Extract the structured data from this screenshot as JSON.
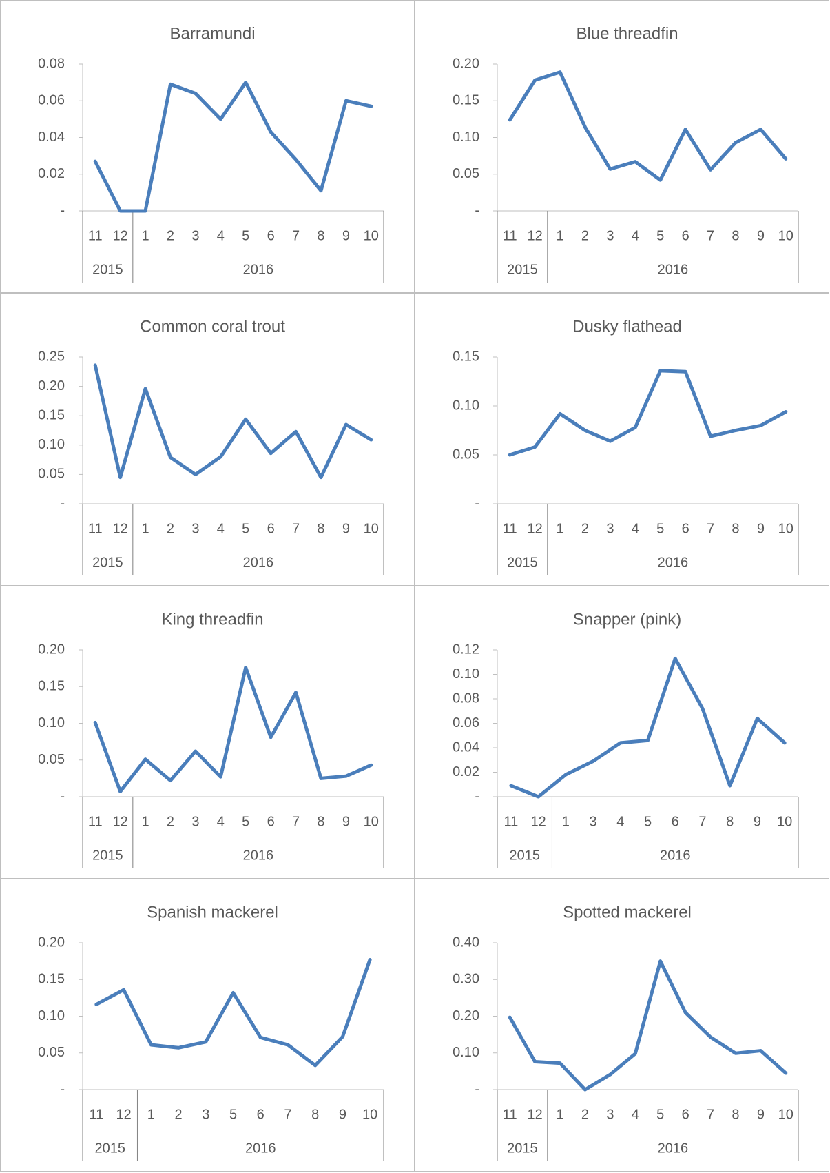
{
  "chart_data": [
    {
      "type": "line",
      "title": "Barramundi",
      "color": "#4a7ebb",
      "groups": [
        {
          "label": "2015",
          "categories": [
            "11",
            "12"
          ]
        },
        {
          "label": "2016",
          "categories": [
            "1",
            "2",
            "3",
            "4",
            "5",
            "6",
            "7",
            "8",
            "9",
            "10"
          ]
        }
      ],
      "values": [
        0.027,
        0,
        0,
        0.069,
        0.064,
        0.05,
        0.07,
        0.043,
        0.028,
        0.011,
        0.06,
        0.057
      ],
      "ylim": [
        0,
        0.08
      ],
      "yticks": [
        {
          "value": 0,
          "label": "-"
        },
        0.02,
        0.04,
        0.06,
        0.08
      ]
    },
    {
      "type": "line",
      "title": "Blue threadfin",
      "color": "#4a7ebb",
      "groups": [
        {
          "label": "2015",
          "categories": [
            "11",
            "12"
          ]
        },
        {
          "label": "2016",
          "categories": [
            "1",
            "2",
            "3",
            "4",
            "5",
            "6",
            "7",
            "8",
            "9",
            "10"
          ]
        }
      ],
      "values": [
        0.124,
        0.178,
        0.189,
        0.114,
        0.057,
        0.067,
        0.042,
        0.111,
        0.056,
        0.093,
        0.111,
        0.071
      ],
      "ylim": [
        0,
        0.2
      ],
      "yticks": [
        {
          "value": 0,
          "label": "-"
        },
        0.05,
        {
          "value": 0.1,
          "label": "0.10"
        },
        0.15,
        {
          "value": 0.2,
          "label": "0.20"
        }
      ]
    },
    {
      "type": "line",
      "title": "Common coral trout",
      "color": "#4a7ebb",
      "groups": [
        {
          "label": "2015",
          "categories": [
            "11",
            "12"
          ]
        },
        {
          "label": "2016",
          "categories": [
            "1",
            "2",
            "3",
            "4",
            "5",
            "6",
            "7",
            "8",
            "9",
            "10"
          ]
        }
      ],
      "values": [
        0.236,
        0.045,
        0.196,
        0.079,
        0.05,
        0.08,
        0.144,
        0.086,
        0.123,
        0.045,
        0.135,
        0.109
      ],
      "ylim": [
        0,
        0.25
      ],
      "yticks": [
        {
          "value": 0,
          "label": "-"
        },
        0.05,
        {
          "value": 0.1,
          "label": "0.10"
        },
        0.15,
        {
          "value": 0.2,
          "label": "0.20"
        },
        0.25
      ]
    },
    {
      "type": "line",
      "title": "Dusky flathead",
      "color": "#4a7ebb",
      "groups": [
        {
          "label": "2015",
          "categories": [
            "11",
            "12"
          ]
        },
        {
          "label": "2016",
          "categories": [
            "1",
            "2",
            "3",
            "4",
            "5",
            "6",
            "7",
            "8",
            "9",
            "10"
          ]
        }
      ],
      "values": [
        0.05,
        0.058,
        0.092,
        0.075,
        0.064,
        0.078,
        0.136,
        0.135,
        0.069,
        0.075,
        0.08,
        0.094
      ],
      "ylim": [
        0,
        0.15
      ],
      "yticks": [
        {
          "value": 0,
          "label": "-"
        },
        0.05,
        {
          "value": 0.1,
          "label": "0.10"
        },
        0.15
      ]
    },
    {
      "type": "line",
      "title": "King threadfin",
      "color": "#4a7ebb",
      "groups": [
        {
          "label": "2015",
          "categories": [
            "11",
            "12"
          ]
        },
        {
          "label": "2016",
          "categories": [
            "1",
            "2",
            "3",
            "4",
            "5",
            "6",
            "7",
            "8",
            "9",
            "10"
          ]
        }
      ],
      "values": [
        0.101,
        0.007,
        0.051,
        0.022,
        0.062,
        0.027,
        0.176,
        0.081,
        0.142,
        0.025,
        0.028,
        0.043
      ],
      "ylim": [
        0,
        0.2
      ],
      "yticks": [
        {
          "value": 0,
          "label": "-"
        },
        0.05,
        {
          "value": 0.1,
          "label": "0.10"
        },
        0.15,
        {
          "value": 0.2,
          "label": "0.20"
        }
      ]
    },
    {
      "type": "line",
      "title": "Snapper (pink)",
      "color": "#4a7ebb",
      "groups": [
        {
          "label": "2015",
          "categories": [
            "11",
            "12"
          ]
        },
        {
          "label": "2016",
          "categories": [
            "1",
            "3",
            "4",
            "5",
            "6",
            "7",
            "8",
            "9",
            "10"
          ]
        }
      ],
      "values": [
        0.009,
        0,
        0.018,
        0.029,
        0.044,
        0.046,
        0.113,
        0.072,
        0.009,
        0.064,
        0.044
      ],
      "ylim": [
        0,
        0.12
      ],
      "yticks": [
        {
          "value": 0,
          "label": "-"
        },
        0.02,
        0.04,
        0.06,
        0.08,
        {
          "value": 0.1,
          "label": "0.10"
        },
        0.12
      ]
    },
    {
      "type": "line",
      "title": "Spanish mackerel",
      "color": "#4a7ebb",
      "groups": [
        {
          "label": "2015",
          "categories": [
            "11",
            "12"
          ]
        },
        {
          "label": "2016",
          "categories": [
            "1",
            "2",
            "3",
            "5",
            "6",
            "7",
            "8",
            "9",
            "10"
          ]
        }
      ],
      "values": [
        0.116,
        0.136,
        0.061,
        0.057,
        0.065,
        0.132,
        0.071,
        0.061,
        0.033,
        0.072,
        0.177
      ],
      "ylim": [
        0,
        0.2
      ],
      "yticks": [
        {
          "value": 0,
          "label": "-"
        },
        0.05,
        {
          "value": 0.1,
          "label": "0.10"
        },
        0.15,
        {
          "value": 0.2,
          "label": "0.20"
        }
      ]
    },
    {
      "type": "line",
      "title": "Spotted mackerel",
      "color": "#4a7ebb",
      "groups": [
        {
          "label": "2015",
          "categories": [
            "11",
            "12"
          ]
        },
        {
          "label": "2016",
          "categories": [
            "1",
            "2",
            "3",
            "4",
            "5",
            "6",
            "7",
            "8",
            "9",
            "10"
          ]
        }
      ],
      "values": [
        0.197,
        0.076,
        0.072,
        0,
        0.041,
        0.098,
        0.35,
        0.21,
        0.143,
        0.099,
        0.106,
        0.045
      ],
      "ylim": [
        0,
        0.4
      ],
      "yticks": [
        {
          "value": 0,
          "label": "-"
        },
        {
          "value": 0.1,
          "label": "0.10"
        },
        {
          "value": 0.2,
          "label": "0.20"
        },
        {
          "value": 0.3,
          "label": "0.30"
        },
        {
          "value": 0.4,
          "label": "0.40"
        }
      ]
    }
  ]
}
